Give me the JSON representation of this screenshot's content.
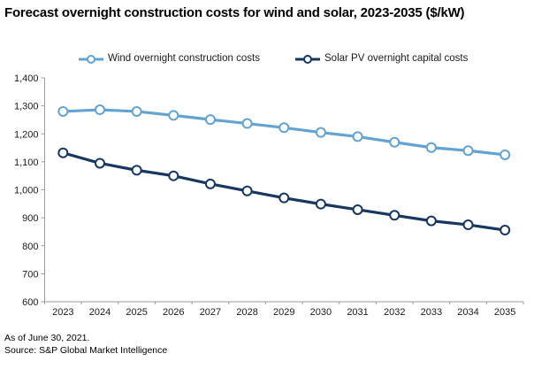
{
  "title": "Forecast overnight construction costs for wind and solar, 2023-2035 ($/kW)",
  "legend": [
    {
      "label": "Wind overnight construction costs",
      "color": "#63A3CF"
    },
    {
      "label": "Solar PV overnight capital costs",
      "color": "#17375E"
    }
  ],
  "footer": {
    "as_of": "As of June 30, 2021.",
    "source": "Source: S&P Global Market Intelligence"
  },
  "colors": {
    "wind": "#63A3CF",
    "solar": "#17375E",
    "axis": "#9b9b9b",
    "tick_text": "#1a1a1a",
    "marker_fill": "#ffffff"
  },
  "chart_data": {
    "type": "line",
    "title": "Forecast overnight construction costs for wind and solar, 2023-2035 ($/kW)",
    "categories": [
      "2023",
      "2024",
      "2025",
      "2026",
      "2027",
      "2028",
      "2029",
      "2030",
      "2031",
      "2032",
      "2033",
      "2034",
      "2035"
    ],
    "series": [
      {
        "name": "Wind overnight construction costs",
        "color": "#63A3CF",
        "values": [
          1280,
          1286,
          1280,
          1266,
          1251,
          1237,
          1222,
          1205,
          1190,
          1170,
          1151,
          1140,
          1125
        ]
      },
      {
        "name": "Solar PV overnight capital costs",
        "color": "#17375E",
        "values": [
          1132,
          1095,
          1070,
          1050,
          1021,
          996,
          971,
          949,
          929,
          909,
          889,
          875,
          856
        ]
      }
    ],
    "xlabel": "",
    "ylabel": "",
    "ylim": [
      600,
      1400
    ],
    "y_tick_step": 100,
    "y_tick_labels": [
      "600",
      "700",
      "800",
      "900",
      "1,000",
      "1,100",
      "1,200",
      "1,300",
      "1,400"
    ],
    "grid": false,
    "legend_position": "top",
    "marker": "open-circle"
  }
}
